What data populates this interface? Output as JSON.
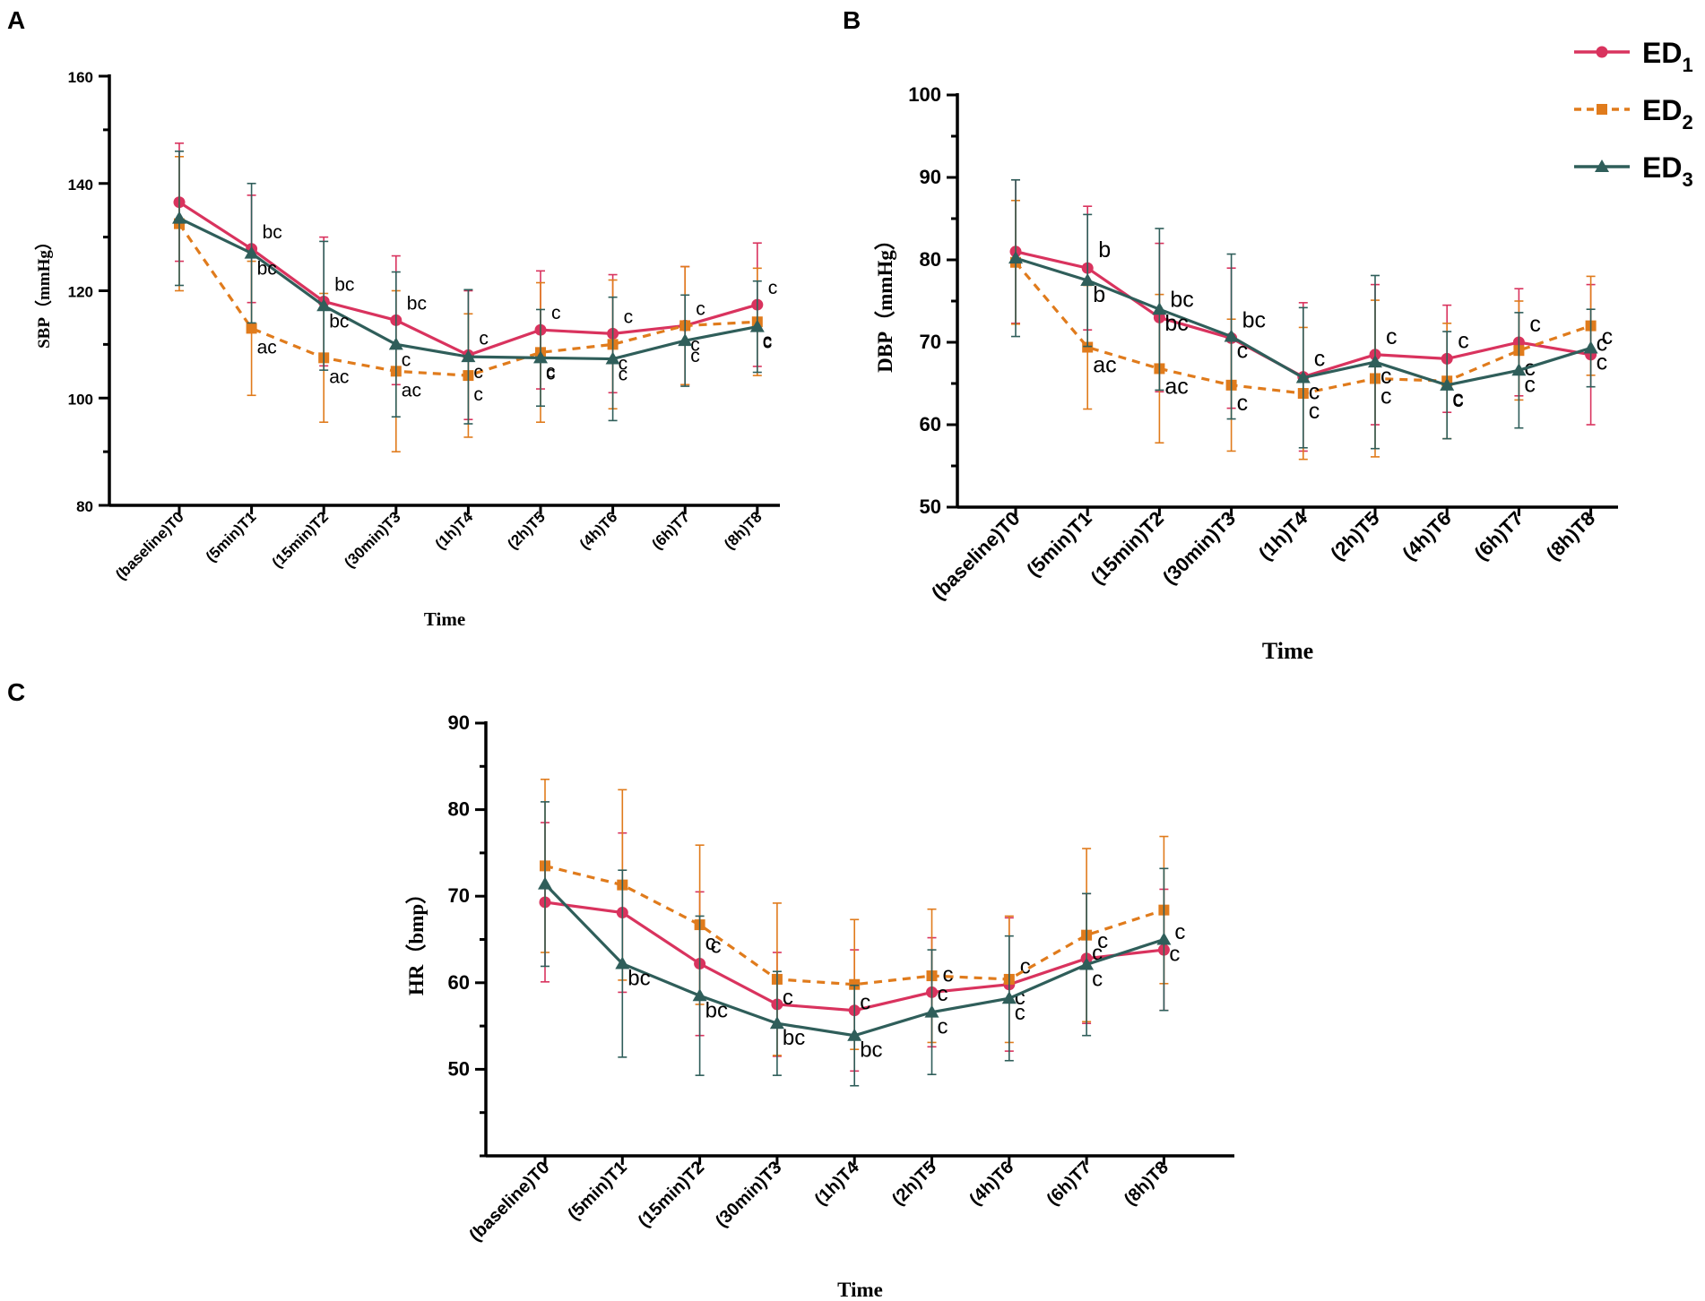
{
  "colors": {
    "ED1": "#d9335e",
    "ED2": "#e07b1c",
    "ED3": "#2f5e5a",
    "axis": "#000000"
  },
  "legend": {
    "items": [
      {
        "series": "ED1",
        "label": "ED",
        "sub": "1",
        "marker": "circle",
        "dash": false
      },
      {
        "series": "ED2",
        "label": "ED",
        "sub": "2",
        "marker": "square",
        "dash": true
      },
      {
        "series": "ED3",
        "label": "ED",
        "sub": "3",
        "marker": "triangle",
        "dash": false
      }
    ]
  },
  "chart_data": [
    {
      "panel": "A",
      "type": "line",
      "title": "",
      "xlabel": "Time",
      "ylabel": "SBP（mmHg）",
      "ylim": [
        80,
        160
      ],
      "yticks": [
        80,
        100,
        120,
        140,
        160
      ],
      "categories": [
        "(baseline)T0",
        "(5min)T1",
        "(15min)T2",
        "(30min)T3",
        "(1h)T4",
        "(2h)T5",
        "(4h)T6",
        "(6h)T7",
        "(8h)T8"
      ],
      "series": [
        {
          "name": "ED1",
          "values": [
            136.5,
            127.8,
            118.0,
            114.5,
            108.0,
            112.7,
            112.0,
            113.5,
            117.4
          ],
          "errors": [
            11.0,
            10.0,
            12.0,
            12.0,
            12.0,
            11.0,
            11.0,
            11.0,
            11.5
          ],
          "labels": [
            "",
            "bc",
            "bc",
            "bc",
            "c",
            "c",
            "c",
            "c",
            "c"
          ]
        },
        {
          "name": "ED2",
          "values": [
            132.5,
            113.0,
            107.5,
            105.0,
            104.2,
            108.5,
            110.0,
            113.5,
            114.2
          ],
          "errors": [
            12.5,
            12.5,
            12.0,
            15.0,
            11.5,
            13.0,
            12.0,
            11.0,
            10.0
          ],
          "labels": [
            "",
            "ac",
            "ac",
            "ac",
            "c",
            "c",
            "c",
            "c",
            "c"
          ]
        },
        {
          "name": "ED3",
          "values": [
            133.5,
            127.0,
            117.2,
            110.0,
            107.7,
            107.5,
            107.3,
            110.7,
            113.3
          ],
          "errors": [
            12.5,
            13.0,
            12.0,
            13.5,
            12.5,
            9.0,
            11.5,
            8.5,
            8.5
          ],
          "labels": [
            "",
            "bc",
            "bc",
            "c",
            "c",
            "c",
            "c",
            "c",
            "c"
          ]
        }
      ]
    },
    {
      "panel": "B",
      "type": "line",
      "title": "",
      "xlabel": "Time",
      "ylabel": "DBP（mmHg）",
      "ylim": [
        50,
        100
      ],
      "yticks": [
        50,
        60,
        70,
        80,
        90,
        100
      ],
      "categories": [
        "(baseline)T0",
        "(5min)T1",
        "(15min)T2",
        "(30min)T3",
        "(1h)T4",
        "(2h)T5",
        "(4h)T6",
        "(6h)T7",
        "(8h)T8"
      ],
      "series": [
        {
          "name": "ED1",
          "values": [
            81.0,
            79.0,
            73.0,
            70.5,
            65.8,
            68.5,
            68.0,
            70.0,
            68.5
          ],
          "errors": [
            8.7,
            7.5,
            9.0,
            8.5,
            9.0,
            8.5,
            6.5,
            6.5,
            8.5
          ],
          "labels": [
            "",
            "b",
            "bc",
            "bc",
            "c",
            "c",
            "c",
            "c",
            "c"
          ]
        },
        {
          "name": "ED2",
          "values": [
            79.7,
            69.4,
            66.8,
            64.8,
            63.8,
            65.6,
            65.3,
            69.0,
            72.0
          ],
          "errors": [
            7.5,
            7.5,
            9.0,
            8.0,
            8.0,
            9.5,
            7.0,
            6.0,
            6.0
          ],
          "labels": [
            "",
            "ac",
            "ac",
            "c",
            "c",
            "c",
            "c",
            "c",
            "c"
          ]
        },
        {
          "name": "ED3",
          "values": [
            80.2,
            77.5,
            74.0,
            70.7,
            65.7,
            67.6,
            64.8,
            66.6,
            69.3
          ],
          "errors": [
            9.5,
            8.0,
            9.8,
            10.0,
            8.5,
            10.5,
            6.5,
            7.0,
            4.7
          ],
          "labels": [
            "",
            "b",
            "bc",
            "c",
            "c",
            "c",
            "c",
            "c",
            "c"
          ]
        }
      ]
    },
    {
      "panel": "C",
      "type": "line",
      "title": "",
      "xlabel": "Time",
      "ylabel": "HR（bmp）",
      "ylim": [
        40,
        90
      ],
      "yticks": [
        50,
        60,
        70,
        80,
        90
      ],
      "categories": [
        "(baseline)T0",
        "(5min)T1",
        "(15min)T2",
        "(30min)T3",
        "(1h)T4",
        "(2h)T5",
        "(4h)T6",
        "(6h)T7",
        "(8h)T8"
      ],
      "series": [
        {
          "name": "ED1",
          "values": [
            69.3,
            68.1,
            62.2,
            57.5,
            56.8,
            58.9,
            59.8,
            62.8,
            63.8
          ],
          "errors": [
            9.2,
            9.2,
            8.3,
            6.0,
            7.0,
            6.3,
            7.7,
            7.5,
            7.0
          ],
          "labels": [
            "",
            "",
            "c",
            "",
            "",
            "c",
            "c",
            "c",
            "c"
          ]
        },
        {
          "name": "ED2",
          "values": [
            73.5,
            71.3,
            66.7,
            60.4,
            59.8,
            60.8,
            60.4,
            65.5,
            68.4
          ],
          "errors": [
            10.0,
            11.0,
            9.2,
            8.8,
            7.5,
            7.7,
            7.3,
            10.0,
            8.5
          ],
          "labels": [
            "",
            "",
            "c",
            "c",
            "c",
            "c",
            "c",
            "c",
            ""
          ]
        },
        {
          "name": "ED3",
          "values": [
            71.4,
            62.2,
            58.5,
            55.3,
            53.9,
            56.6,
            58.2,
            62.1,
            65.0
          ],
          "errors": [
            9.5,
            10.8,
            9.2,
            6.0,
            5.8,
            7.2,
            7.2,
            8.2,
            8.2
          ],
          "labels": [
            "",
            "bc",
            "bc",
            "bc",
            "bc",
            "c",
            "c",
            "c",
            "c"
          ]
        }
      ]
    }
  ]
}
